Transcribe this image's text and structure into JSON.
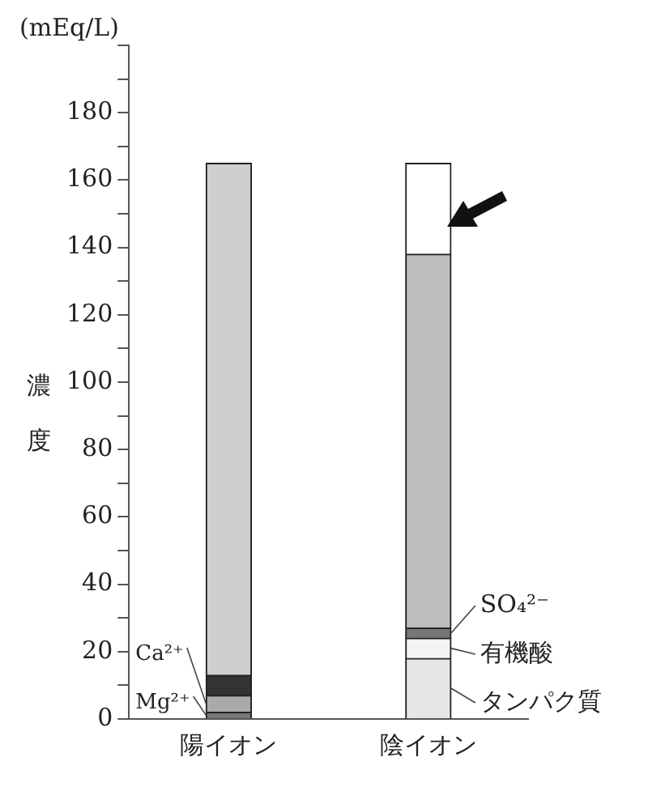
{
  "chart_data": {
    "type": "bar",
    "stacked": true,
    "ylabel": "濃度",
    "annotations": [
      "(mEq/L)"
    ],
    "categories": [
      "陽イオン",
      "陰イオン"
    ],
    "series": [
      {
        "name": "Mg²⁺",
        "color": "#777777",
        "values": [
          2,
          null
        ]
      },
      {
        "name": "Ca²⁺",
        "color": "#aaaaaa",
        "values": [
          5,
          null
        ]
      },
      {
        "color": "#333333",
        "values": [
          6,
          null
        ]
      },
      {
        "color": "#cfcfcf",
        "values": [
          152,
          null
        ]
      },
      {
        "name": "タンパク質",
        "color": "#e6e6e6",
        "values": [
          null,
          18
        ]
      },
      {
        "name": "有機酸",
        "color": "#f4f4f4",
        "values": [
          null,
          6
        ]
      },
      {
        "name": "SO₄²⁻",
        "color": "#777777",
        "values": [
          null,
          3
        ]
      },
      {
        "color": "#bdbdbd",
        "values": [
          null,
          111
        ]
      },
      {
        "color": "#ffffff",
        "values": [
          null,
          27
        ]
      }
    ],
    "ylim": [
      0,
      200
    ],
    "yticks": [
      0,
      {
        "value": 10,
        "label": null
      },
      20,
      {
        "value": 30,
        "label": null
      },
      40,
      {
        "value": 50,
        "label": null
      },
      60,
      {
        "value": 70,
        "label": null
      },
      80,
      {
        "value": 90,
        "label": null
      },
      100,
      {
        "value": 110,
        "label": null
      },
      120,
      {
        "value": 130,
        "label": null
      },
      140,
      {
        "value": 150,
        "label": null
      },
      160,
      {
        "value": 170,
        "label": null
      },
      180,
      {
        "value": 190,
        "label": null
      },
      {
        "value": 200,
        "label": null
      }
    ],
    "grid": false,
    "legend": false
  }
}
